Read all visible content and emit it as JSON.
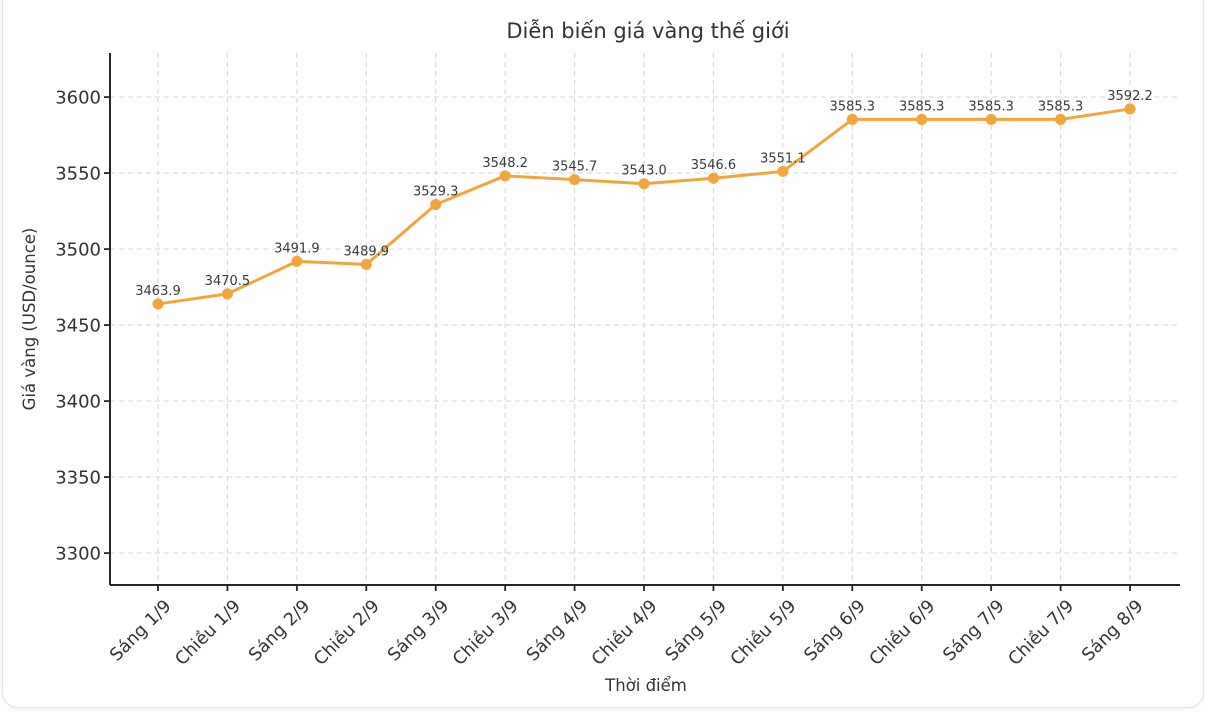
{
  "chart_data": {
    "type": "line",
    "title": "Diễn biến giá vàng thế giới",
    "xlabel": "Thời điểm",
    "ylabel": "Giá vàng (USD/ounce)",
    "categories": [
      "Sáng 1/9",
      "Chiều 1/9",
      "Sáng 2/9",
      "Chiều 2/9",
      "Sáng 3/9",
      "Chiều 3/9",
      "Sáng 4/9",
      "Chiều 4/9",
      "Sáng 5/9",
      "Chiều 5/9",
      "Sáng 6/9",
      "Chiều 6/9",
      "Sáng 7/9",
      "Chiều 7/9",
      "Sáng 8/9"
    ],
    "values": [
      3463.9,
      3470.5,
      3491.9,
      3489.9,
      3529.3,
      3548.2,
      3545.7,
      3543.0,
      3546.6,
      3551.1,
      3585.3,
      3585.3,
      3585.3,
      3585.3,
      3592.2
    ],
    "data_labels": [
      "3463.9",
      "3470.5",
      "3491.9",
      "3489.9",
      "3529.3",
      "3548.2",
      "3545.7",
      "3543.0",
      "3546.6",
      "3551.1",
      "3585.3",
      "3585.3",
      "3585.3",
      "3585.3",
      "3592.2"
    ],
    "yticks": [
      3300,
      3350,
      3400,
      3450,
      3500,
      3550,
      3600
    ],
    "ylim": [
      3279,
      3629
    ],
    "grid": true,
    "grid_style": "dashed",
    "legend_position": "none",
    "colors": {
      "line": "#F0A63C",
      "marker": "#F0A63C",
      "grid": "#DADADA",
      "axis": "#262626",
      "text": "#333333",
      "point_label": "#3A3A3A",
      "background": "#FFFFFF"
    }
  }
}
